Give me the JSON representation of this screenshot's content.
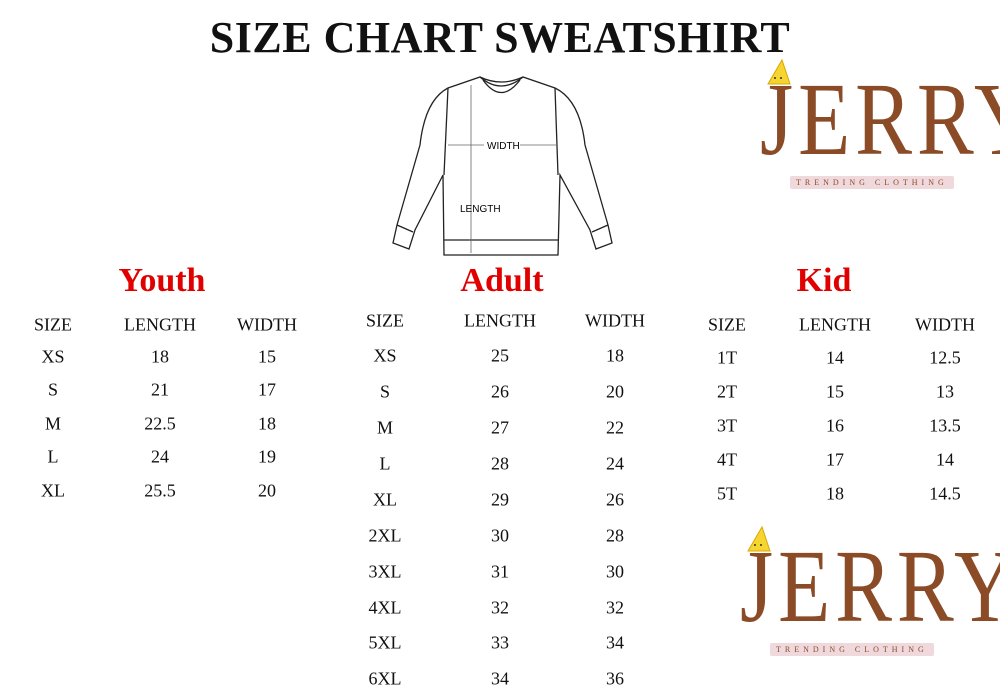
{
  "title": "SIZE CHART SWEATSHIRT",
  "diagram": {
    "width_label": "WIDTH",
    "length_label": "LENGTH"
  },
  "brand": {
    "name": "JERRY",
    "tagline": "TRENDING CLOTHING",
    "color": "#8a4b26",
    "accent": "#e00000"
  },
  "tables": [
    {
      "title": "Youth",
      "headers": [
        "SIZE",
        "LENGTH",
        "WIDTH"
      ],
      "rows": [
        [
          "XS",
          "18",
          "15"
        ],
        [
          "S",
          "21",
          "17"
        ],
        [
          "M",
          "22.5",
          "18"
        ],
        [
          "L",
          "24",
          "19"
        ],
        [
          "XL",
          "25.5",
          "20"
        ]
      ]
    },
    {
      "title": "Adult",
      "headers": [
        "SIZE",
        "LENGTH",
        "WIDTH"
      ],
      "rows": [
        [
          "XS",
          "25",
          "18"
        ],
        [
          "S",
          "26",
          "20"
        ],
        [
          "M",
          "27",
          "22"
        ],
        [
          "L",
          "28",
          "24"
        ],
        [
          "XL",
          "29",
          "26"
        ],
        [
          "2XL",
          "30",
          "28"
        ],
        [
          "3XL",
          "31",
          "30"
        ],
        [
          "4XL",
          "32",
          "32"
        ],
        [
          "5XL",
          "33",
          "34"
        ],
        [
          "6XL",
          "34",
          "36"
        ]
      ]
    },
    {
      "title": "Kid",
      "headers": [
        "SIZE",
        "LENGTH",
        "WIDTH"
      ],
      "rows": [
        [
          "1T",
          "14",
          "12.5"
        ],
        [
          "2T",
          "15",
          "13"
        ],
        [
          "3T",
          "16",
          "13.5"
        ],
        [
          "4T",
          "17",
          "14"
        ],
        [
          "5T",
          "18",
          "14.5"
        ]
      ]
    }
  ]
}
